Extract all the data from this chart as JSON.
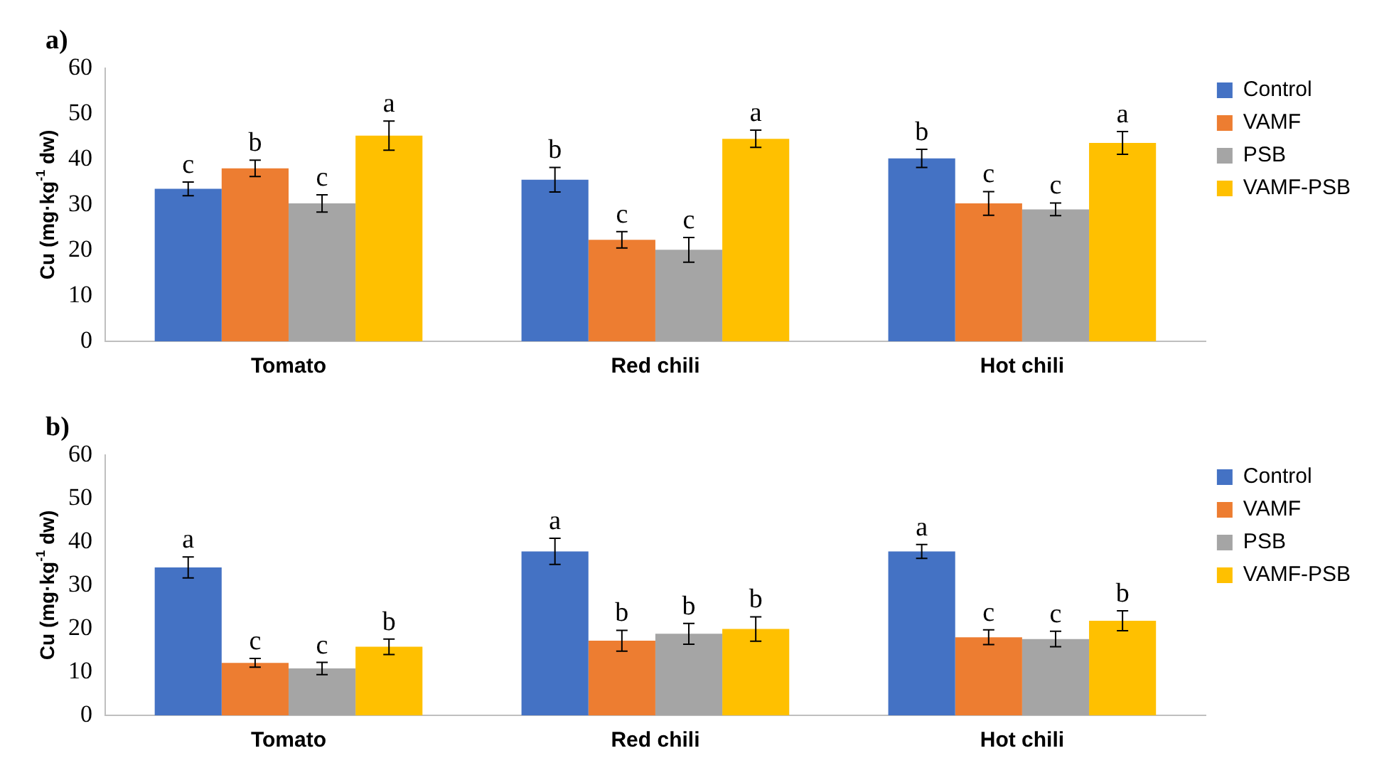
{
  "chart_data": [
    {
      "type": "bar",
      "title": "a)",
      "ylabel": "Cu (mg·kg$^{-1}$ dw)",
      "categories": [
        "Tomato",
        "Red chili",
        "Hot chili"
      ],
      "ylim": [
        0,
        60
      ],
      "yticks": [
        0,
        10,
        20,
        30,
        40,
        50,
        60
      ],
      "grid": false,
      "legend": "top right",
      "series": [
        {
          "name": "Control",
          "color": "#4472c4",
          "values": [
            33.5,
            35.5,
            40.2
          ],
          "errors": [
            1.5,
            2.7,
            2.0
          ],
          "value_labels": [
            "c",
            "b",
            "b"
          ]
        },
        {
          "name": "VAMF",
          "color": "#ed7d31",
          "values": [
            38,
            22.3,
            30.3
          ],
          "errors": [
            1.8,
            1.8,
            2.6
          ],
          "value_labels": [
            "b",
            "c",
            "c"
          ]
        },
        {
          "name": "PSB",
          "color": "#a5a5a5",
          "values": [
            30.3,
            20.1,
            29
          ],
          "errors": [
            1.9,
            2.7,
            1.4
          ],
          "value_labels": [
            "c",
            "c",
            "c"
          ]
        },
        {
          "name": "VAMF-PSB",
          "color": "#ffc000",
          "values": [
            45.2,
            44.5,
            43.6
          ],
          "errors": [
            3.2,
            1.9,
            2.5
          ],
          "value_labels": [
            "a",
            "a",
            "a"
          ]
        }
      ]
    },
    {
      "type": "bar",
      "title": "b)",
      "ylabel": "Cu (mg·kg$^{-1}$ dw)",
      "categories": [
        "Tomato",
        "Red chili",
        "Hot chili"
      ],
      "ylim": [
        0,
        60
      ],
      "yticks": [
        0,
        10,
        20,
        30,
        40,
        50,
        60
      ],
      "grid": false,
      "legend": "top right",
      "series": [
        {
          "name": "Control",
          "color": "#4472c4",
          "values": [
            34.1,
            37.8,
            37.8
          ],
          "errors": [
            2.4,
            3.0,
            1.6
          ],
          "value_labels": [
            "a",
            "a",
            "a"
          ]
        },
        {
          "name": "VAMF",
          "color": "#ed7d31",
          "values": [
            12.1,
            17.2,
            18
          ],
          "errors": [
            1.0,
            2.4,
            1.7
          ],
          "value_labels": [
            "c",
            "b",
            "c"
          ]
        },
        {
          "name": "PSB",
          "color": "#a5a5a5",
          "values": [
            10.8,
            18.8,
            17.6
          ],
          "errors": [
            1.4,
            2.4,
            1.8
          ],
          "value_labels": [
            "c",
            "b",
            "c"
          ]
        },
        {
          "name": "VAMF-PSB",
          "color": "#ffc000",
          "values": [
            15.8,
            19.9,
            21.8
          ],
          "errors": [
            1.8,
            2.8,
            2.3
          ],
          "value_labels": [
            "b",
            "b",
            "b"
          ]
        }
      ]
    }
  ]
}
